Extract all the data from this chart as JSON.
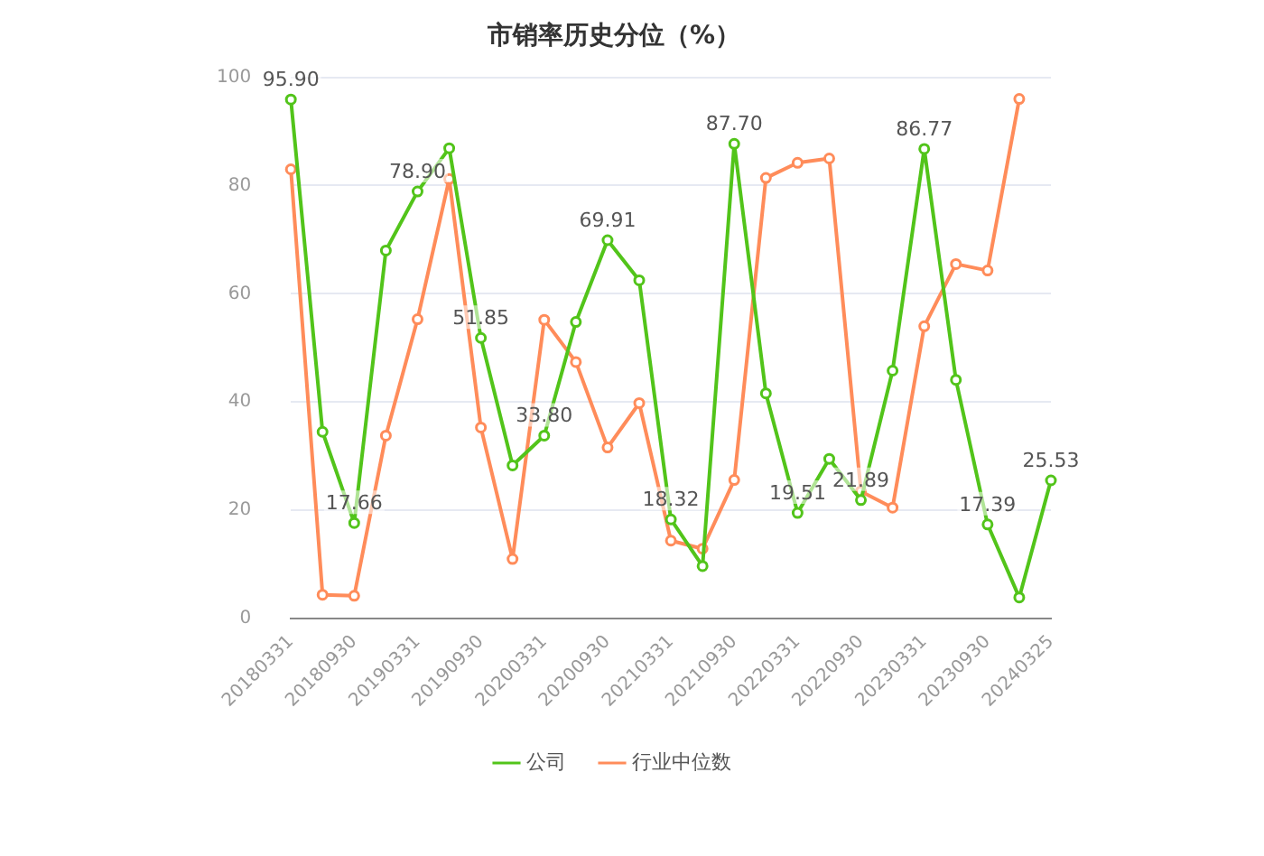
{
  "chart_data": {
    "type": "line",
    "title": "市销率历史分位（%）",
    "categories": [
      "20180331",
      null,
      "20180930",
      null,
      "20190331",
      null,
      "20190930",
      null,
      "20200331",
      null,
      "20200930",
      null,
      "20210331",
      null,
      "20210930",
      null,
      "20220331",
      null,
      "20220930",
      null,
      "20230331",
      null,
      "20230930",
      null,
      "20240325"
    ],
    "series": [
      {
        "name": "公司",
        "color": "#52c41a",
        "values": [
          95.9,
          34.5,
          17.66,
          68,
          78.9,
          86.9,
          51.85,
          28.3,
          33.8,
          54.8,
          69.91,
          62.5,
          18.32,
          9.7,
          87.7,
          41.6,
          19.51,
          29.5,
          21.89,
          45.8,
          86.77,
          44.1,
          17.39,
          3.9,
          25.53
        ],
        "value_labels": [
          "95.90",
          null,
          "17.66",
          null,
          "78.90",
          null,
          "51.85",
          null,
          "33.80",
          null,
          "69.91",
          null,
          "18.32",
          null,
          "87.70",
          null,
          "19.51",
          null,
          "21.89",
          null,
          "86.77",
          null,
          "17.39",
          null,
          "25.53"
        ]
      },
      {
        "name": "行业中位数",
        "color": "#ff8c5a",
        "values": [
          83,
          4.4,
          4.2,
          33.8,
          55.3,
          81.2,
          35.3,
          11,
          55.2,
          47.4,
          31.6,
          39.8,
          14.4,
          12.9,
          25.6,
          81.4,
          84.2,
          85,
          23.5,
          20.5,
          54,
          65.5,
          64.3,
          96,
          null
        ]
      }
    ],
    "ylim": [
      0,
      100
    ],
    "yticks": [
      0,
      20,
      40,
      60,
      80,
      100
    ],
    "grid": "y",
    "legend": "bottom",
    "marker": "circle",
    "line_style": "solid"
  }
}
